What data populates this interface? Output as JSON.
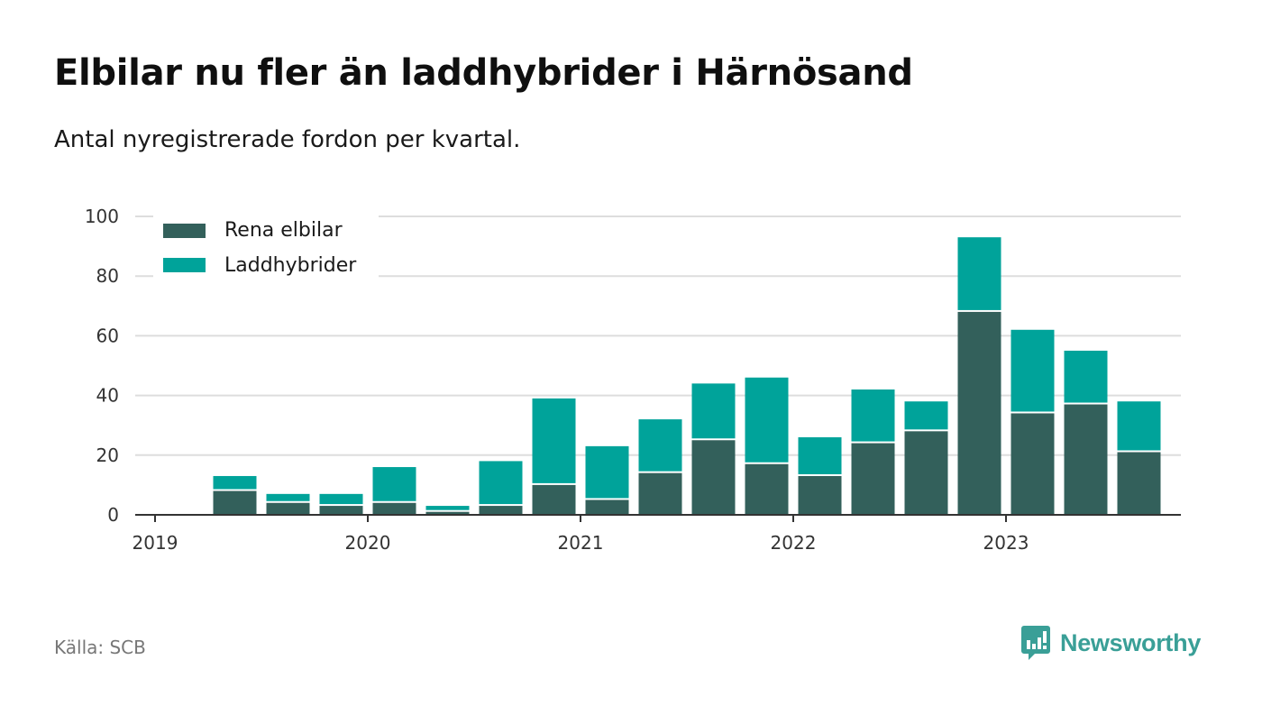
{
  "title": "Elbilar nu fler än laddhybrider i Härnösand",
  "subtitle": "Antal nyregistrerade fordon per kvartal.",
  "source": "Källa: SCB",
  "logo_text": "Newsworthy",
  "colors": {
    "rena": "#33605b",
    "ladd": "#00a39a",
    "grid": "#dddddd",
    "axis": "#333333",
    "logo": "#3a9f97"
  },
  "chart_data": {
    "type": "bar",
    "stacked": true,
    "title": "Elbilar nu fler än laddhybrider i Härnösand",
    "subtitle": "Antal nyregistrerade fordon per kvartal.",
    "xlabel": "",
    "ylabel": "",
    "ylim": [
      0,
      100
    ],
    "yticks": [
      0,
      20,
      40,
      60,
      80,
      100
    ],
    "xticks": [
      "2019",
      "2020",
      "2021",
      "2022",
      "2023"
    ],
    "legend_position": "top-left",
    "grid": true,
    "categories": [
      "2019 Q2",
      "2019 Q3",
      "2019 Q4",
      "2020 Q1",
      "2020 Q2",
      "2020 Q3",
      "2020 Q4",
      "2021 Q1",
      "2021 Q2",
      "2021 Q3",
      "2021 Q4",
      "2022 Q1",
      "2022 Q2",
      "2022 Q3",
      "2022 Q4",
      "2023 Q1",
      "2023 Q2",
      "2023 Q3"
    ],
    "series": [
      {
        "name": "Rena elbilar",
        "values": [
          8,
          4,
          3,
          4,
          1,
          3,
          10,
          5,
          14,
          25,
          17,
          13,
          24,
          28,
          68,
          34,
          37,
          21
        ]
      },
      {
        "name": "Laddhybrider",
        "values": [
          5,
          3,
          4,
          12,
          2,
          15,
          29,
          18,
          18,
          19,
          29,
          13,
          18,
          10,
          25,
          28,
          18,
          17
        ]
      }
    ]
  }
}
